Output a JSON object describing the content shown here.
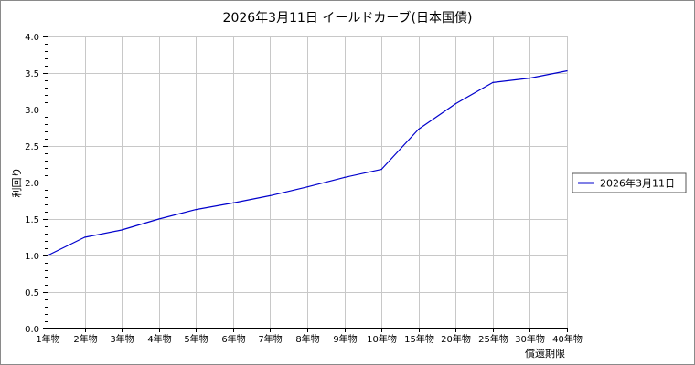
{
  "chart_data": {
    "type": "line",
    "title": "2026年3月11日 イールドカーブ(日本国債)",
    "xlabel": "償還期限",
    "ylabel": "利回り",
    "categories": [
      "1年物",
      "2年物",
      "3年物",
      "4年物",
      "5年物",
      "6年物",
      "7年物",
      "8年物",
      "9年物",
      "10年物",
      "15年物",
      "20年物",
      "25年物",
      "30年物",
      "40年物"
    ],
    "ylim": [
      0,
      4.0
    ],
    "yticks": [
      "0.0",
      "0.5",
      "1.0",
      "1.5",
      "2.0",
      "2.5",
      "3.0",
      "3.5",
      "4.0"
    ],
    "grid": true,
    "legend_position": "right",
    "series": [
      {
        "name": "2026年3月11日",
        "color": "#0000cc",
        "values": [
          1.0,
          1.25,
          1.35,
          1.5,
          1.63,
          1.72,
          1.82,
          1.94,
          2.07,
          2.18,
          2.73,
          3.08,
          3.37,
          3.43,
          3.53
        ]
      }
    ]
  }
}
